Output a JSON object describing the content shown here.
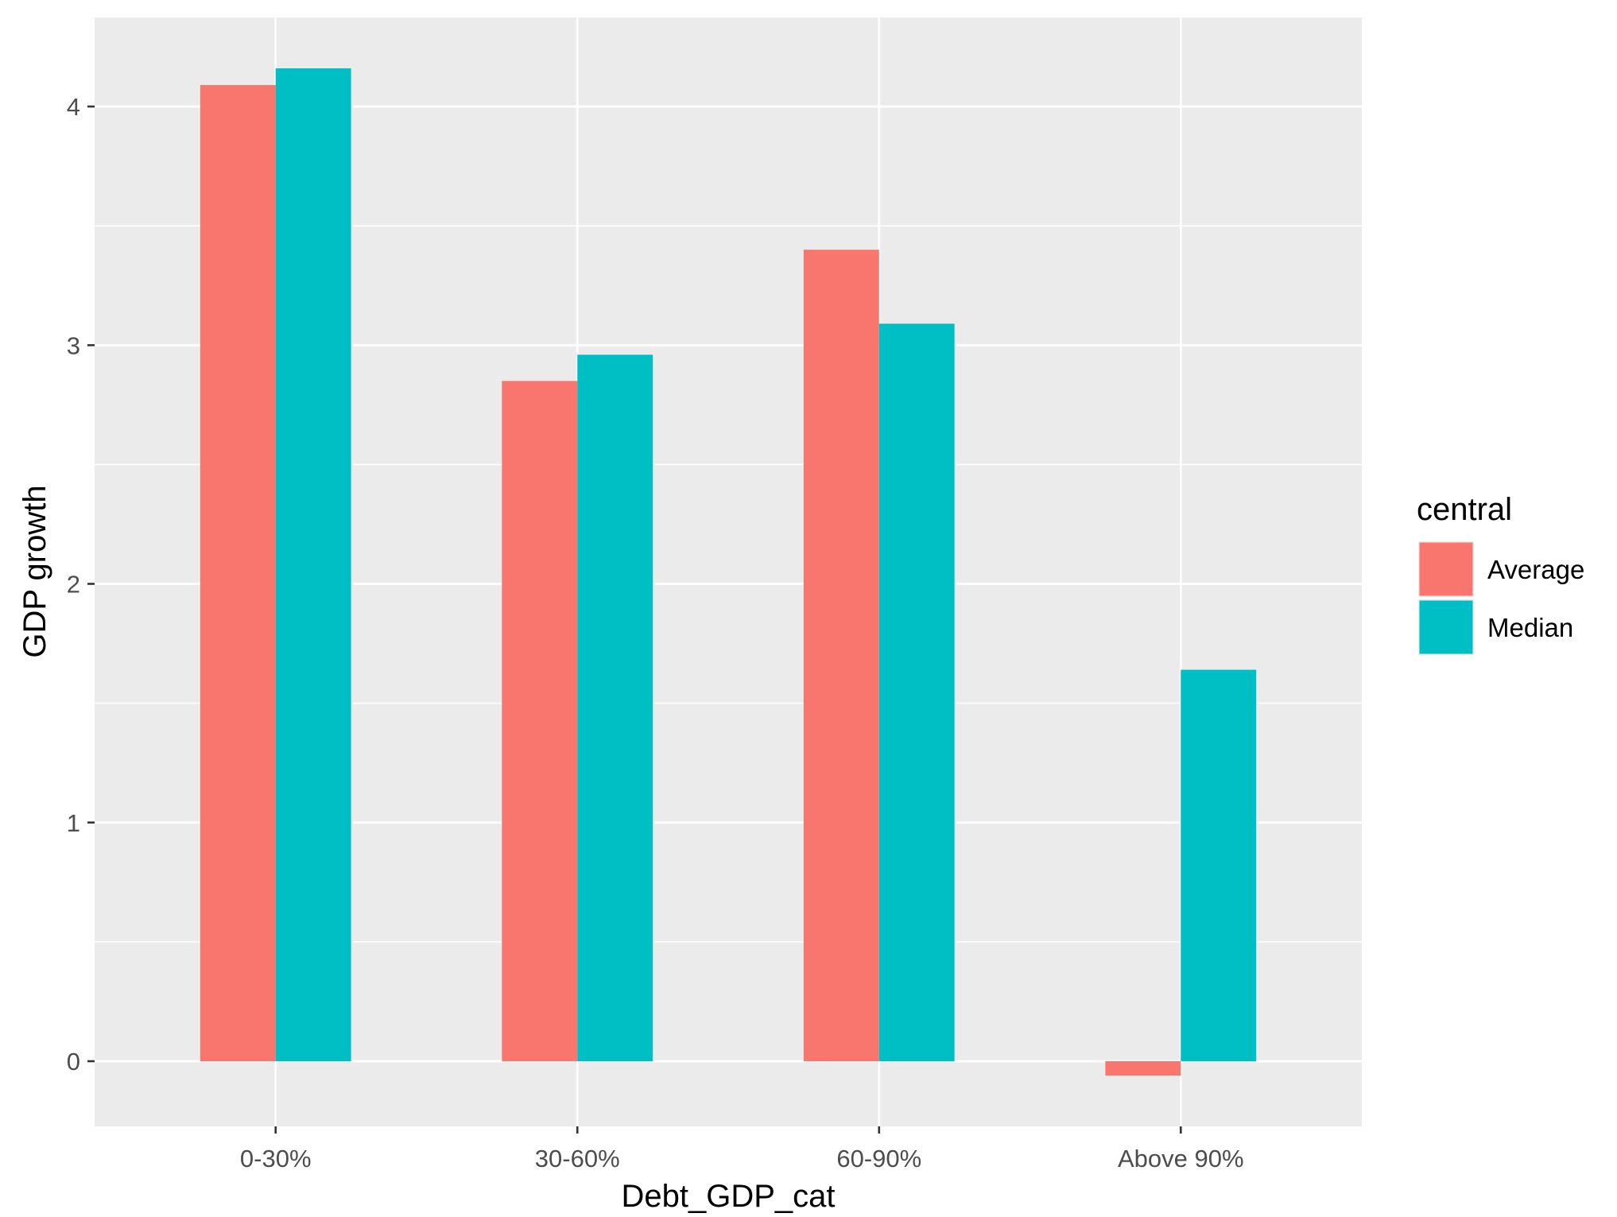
{
  "chart_data": {
    "type": "bar",
    "categories": [
      "0-30%",
      "30-60%",
      "60-90%",
      "Above 90%"
    ],
    "series": [
      {
        "name": "Average",
        "values": [
          4.09,
          2.85,
          3.4,
          -0.06
        ]
      },
      {
        "name": "Median",
        "values": [
          4.16,
          2.96,
          3.09,
          1.64
        ]
      }
    ],
    "xlabel": "Debt_GDP_cat",
    "ylabel": "GDP growth",
    "ylim": [
      -0.27,
      4.38
    ],
    "yticks": [
      0,
      1,
      2,
      3,
      4
    ],
    "ytick_labels": [
      "0",
      "1",
      "2",
      "3",
      "4"
    ],
    "grid": true,
    "legend": {
      "title": "central",
      "position": "right"
    },
    "colors": {
      "Average": "#F8766D",
      "Median": "#00BFC4",
      "panel": "#EBEBEB",
      "grid": "#FFFFFF"
    }
  }
}
